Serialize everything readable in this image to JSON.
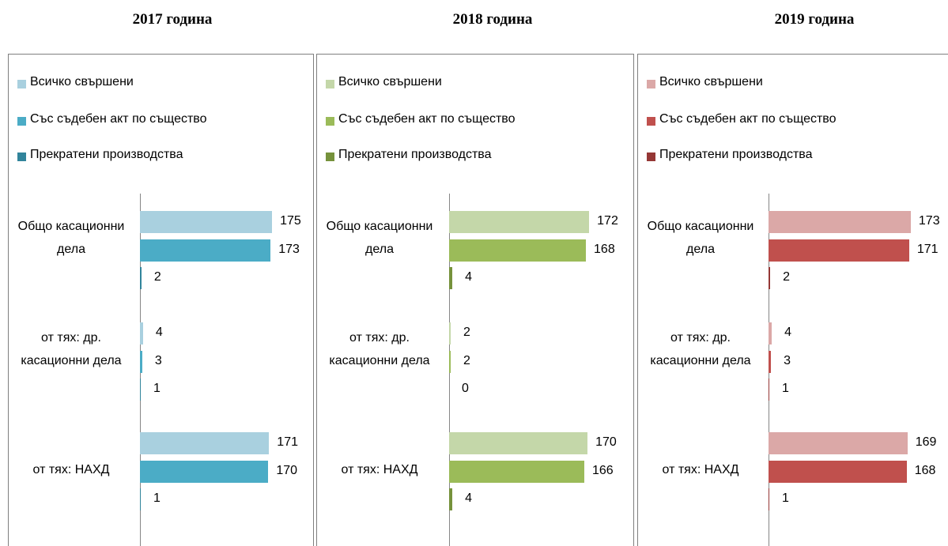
{
  "chart_data": [
    {
      "type": "bar",
      "orientation": "horizontal",
      "title": "2017 година",
      "categories": [
        "Общо касационни дела",
        "от тях: др. касационни дела",
        "от тях: НАХД"
      ],
      "series": [
        {
          "name": "Всичко свършени",
          "color": "#a9d0df",
          "values": [
            175,
            4,
            171
          ]
        },
        {
          "name": "Със съдебен акт по същество",
          "color": "#4bacc6",
          "values": [
            173,
            3,
            170
          ]
        },
        {
          "name": "Прекратени производства",
          "color": "#31849b",
          "values": [
            2,
            1,
            1
          ]
        }
      ]
    },
    {
      "type": "bar",
      "orientation": "horizontal",
      "title": "2018 година",
      "categories": [
        "Общо касационни дела",
        "от тях: др. касационни дела",
        "от тях: НАХД"
      ],
      "series": [
        {
          "name": "Всичко свършени",
          "color": "#c4d7a9",
          "values": [
            172,
            2,
            170
          ]
        },
        {
          "name": "Със съдебен акт по същество",
          "color": "#9bbb59",
          "values": [
            168,
            2,
            166
          ]
        },
        {
          "name": "Прекратени производства",
          "color": "#76923c",
          "values": [
            4,
            0,
            4
          ]
        }
      ]
    },
    {
      "type": "bar",
      "orientation": "horizontal",
      "title": "2019 година",
      "categories": [
        "Общо касационни дела",
        "от тях: др. касационни дела",
        "от тях: НАХД"
      ],
      "series": [
        {
          "name": "Всичко свършени",
          "color": "#dba8a7",
          "values": [
            173,
            4,
            169
          ]
        },
        {
          "name": "Със съдебен акт по същество",
          "color": "#c0504d",
          "values": [
            171,
            3,
            168
          ]
        },
        {
          "name": "Прекратени производства",
          "color": "#953735",
          "values": [
            2,
            1,
            1
          ]
        }
      ]
    }
  ]
}
